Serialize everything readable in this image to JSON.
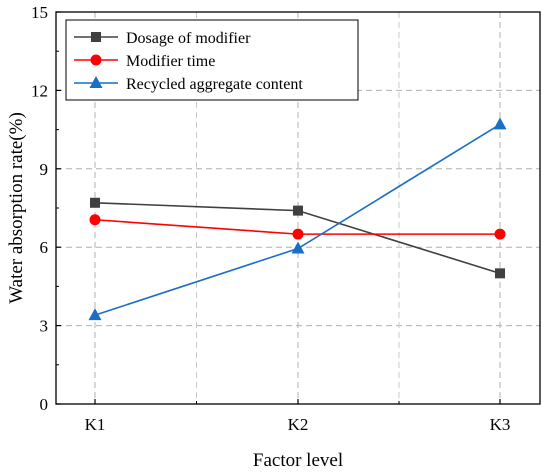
{
  "chart_data": {
    "type": "line",
    "title": "",
    "xlabel": "Factor level",
    "ylabel": "Water absorption rate(%)",
    "categories": [
      "K1",
      "K2",
      "K3"
    ],
    "ylim": [
      0,
      15
    ],
    "yticks": [
      "0",
      "3",
      "6",
      "9",
      "12",
      "15"
    ],
    "grid": true,
    "legend_position": "top-left",
    "series": [
      {
        "name": "Dosage of modifier",
        "values": [
          7.7,
          7.4,
          5.0
        ],
        "color": "#404040",
        "marker": "square"
      },
      {
        "name": "Modifier time",
        "values": [
          7.05,
          6.5,
          6.5
        ],
        "color": "#ff0000",
        "marker": "circle"
      },
      {
        "name": "Recycled aggregate content",
        "values": [
          3.4,
          5.95,
          10.7
        ],
        "color": "#1a6fc4",
        "marker": "triangle"
      }
    ]
  }
}
